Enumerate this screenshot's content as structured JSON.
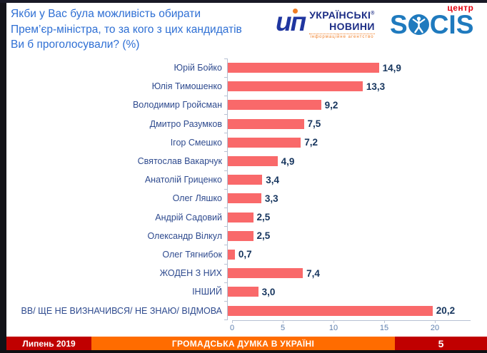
{
  "header": {
    "title": "Якби у Вас була можливість обирати Прем’єр-міністра, то за кого з цих кандидатів Ви б проголосували? (%)",
    "title_lines": [
      "Якби у Вас була можливість обирати",
      "Прем’єр-міністра, то за кого з цих кандидатів",
      "Ви б проголосували? (%)"
    ],
    "logos": {
      "ukrnews": {
        "mark": "ип",
        "line1": "УКРАЇНСЬКІ",
        "registered": "®",
        "line2": "НОВИНИ",
        "caption": "інформаційне агентство"
      },
      "socis": {
        "center_label": "центр",
        "word_left": "S",
        "word_right": "CIS"
      }
    }
  },
  "chart_data": {
    "type": "bar",
    "orientation": "horizontal",
    "title": "Якби у Вас була можливість обирати Прем’єр-міністра, то за кого з цих кандидатів Ви б проголосували? (%)",
    "categories": [
      "Юрій Бойко",
      "Юлія Тимошенко",
      "Володимир Гройсман",
      "Дмитро Разумков",
      "Ігор Смешко",
      "Святослав Вакарчук",
      "Анатолій Гриценко",
      "Олег Ляшко",
      "Андрій Садовий",
      "Олександр Вілкул",
      "Олег Тягнибок",
      "ЖОДЕН З НИХ",
      "ІНШИЙ",
      "ВВ/ ЩЕ НЕ ВИЗНАЧИВСЯ/ НЕ ЗНАЮ/ ВІДМОВА"
    ],
    "values": [
      14.9,
      13.3,
      9.2,
      7.5,
      7.2,
      4.9,
      3.4,
      3.3,
      2.5,
      2.5,
      0.7,
      7.4,
      3.0,
      20.2
    ],
    "value_labels": [
      "14,9",
      "13,3",
      "9,2",
      "7,5",
      "7,2",
      "4,9",
      "3,4",
      "3,3",
      "2,5",
      "2,5",
      "0,7",
      "7,4",
      "3,0",
      "20,2"
    ],
    "xticks": [
      0,
      5,
      10,
      15,
      20
    ],
    "xlim": [
      0,
      23.5
    ],
    "grid": false,
    "legend": false,
    "bar_color": "#F9696A"
  },
  "footer": {
    "date": "Липень 2019",
    "center": "ГРОМАДСЬКА ДУМКА В УКРАЇНІ",
    "page": "5"
  },
  "colors": {
    "title_blue": "#2E6FD4",
    "category_blue": "#2F4B8F",
    "value_navy": "#16355E",
    "tick_grey_blue": "#5D7FAE",
    "axis_line": "#B7C1D3",
    "bar_red": "#F9696A",
    "footer_red": "#C00000",
    "footer_orange": "#FF6C00",
    "logo_blue": "#1F7ABE",
    "logo_red": "#E3000F"
  }
}
